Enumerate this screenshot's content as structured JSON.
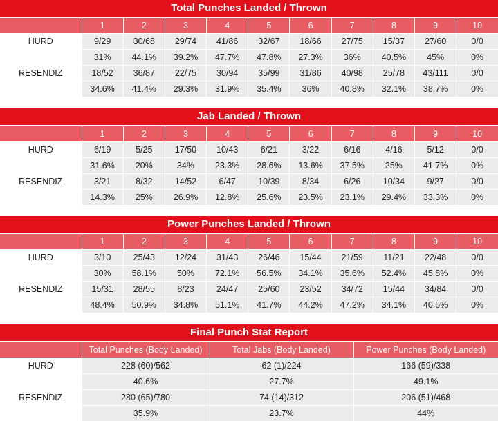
{
  "colors": {
    "title_bg": "#e2101b",
    "header_bg": "#e85c63",
    "row_bg": "#ebebeb"
  },
  "round_headers": [
    "1",
    "2",
    "3",
    "4",
    "5",
    "6",
    "7",
    "8",
    "9",
    "10"
  ],
  "total": {
    "title": "Total Punches Landed / Thrown",
    "rows": [
      {
        "name": "HURD",
        "values": [
          "9/29",
          "30/68",
          "29/74",
          "41/86",
          "32/67",
          "18/66",
          "27/75",
          "15/37",
          "27/60",
          "0/0"
        ],
        "pcts": [
          "31%",
          "44.1%",
          "39.2%",
          "47.7%",
          "47.8%",
          "27.3%",
          "36%",
          "40.5%",
          "45%",
          "0%"
        ]
      },
      {
        "name": "RESENDIZ",
        "values": [
          "18/52",
          "36/87",
          "22/75",
          "30/94",
          "35/99",
          "31/86",
          "40/98",
          "25/78",
          "43/111",
          "0/0"
        ],
        "pcts": [
          "34.6%",
          "41.4%",
          "29.3%",
          "31.9%",
          "35.4%",
          "36%",
          "40.8%",
          "32.1%",
          "38.7%",
          "0%"
        ]
      }
    ]
  },
  "jab": {
    "title": "Jab Landed / Thrown",
    "rows": [
      {
        "name": "HURD",
        "values": [
          "6/19",
          "5/25",
          "17/50",
          "10/43",
          "6/21",
          "3/22",
          "6/16",
          "4/16",
          "5/12",
          "0/0"
        ],
        "pcts": [
          "31.6%",
          "20%",
          "34%",
          "23.3%",
          "28.6%",
          "13.6%",
          "37.5%",
          "25%",
          "41.7%",
          "0%"
        ]
      },
      {
        "name": "RESENDIZ",
        "values": [
          "3/21",
          "8/32",
          "14/52",
          "6/47",
          "10/39",
          "8/34",
          "6/26",
          "10/34",
          "9/27",
          "0/0"
        ],
        "pcts": [
          "14.3%",
          "25%",
          "26.9%",
          "12.8%",
          "25.6%",
          "23.5%",
          "23.1%",
          "29.4%",
          "33.3%",
          "0%"
        ]
      }
    ]
  },
  "power": {
    "title": "Power Punches Landed / Thrown",
    "rows": [
      {
        "name": "HURD",
        "values": [
          "3/10",
          "25/43",
          "12/24",
          "31/43",
          "26/46",
          "15/44",
          "21/59",
          "11/21",
          "22/48",
          "0/0"
        ],
        "pcts": [
          "30%",
          "58.1%",
          "50%",
          "72.1%",
          "56.5%",
          "34.1%",
          "35.6%",
          "52.4%",
          "45.8%",
          "0%"
        ]
      },
      {
        "name": "RESENDIZ",
        "values": [
          "15/31",
          "28/55",
          "8/23",
          "24/47",
          "25/60",
          "23/52",
          "34/72",
          "15/44",
          "34/84",
          "0/0"
        ],
        "pcts": [
          "48.4%",
          "50.9%",
          "34.8%",
          "51.1%",
          "41.7%",
          "44.2%",
          "47.2%",
          "34.1%",
          "40.5%",
          "0%"
        ]
      }
    ]
  },
  "final": {
    "title": "Final Punch Stat Report",
    "headers": [
      "Total Punches (Body Landed)",
      "Total Jabs (Body Landed)",
      "Power Punches (Body Landed)"
    ],
    "rows": [
      {
        "name": "HURD",
        "values": [
          "228 (60)/562",
          "62 (1)/224",
          "166 (59)/338"
        ],
        "pcts": [
          "40.6%",
          "27.7%",
          "49.1%"
        ]
      },
      {
        "name": "RESENDIZ",
        "values": [
          "280 (65)/780",
          "74 (14)/312",
          "206 (51)/468"
        ],
        "pcts": [
          "35.9%",
          "23.7%",
          "44%"
        ]
      }
    ]
  }
}
